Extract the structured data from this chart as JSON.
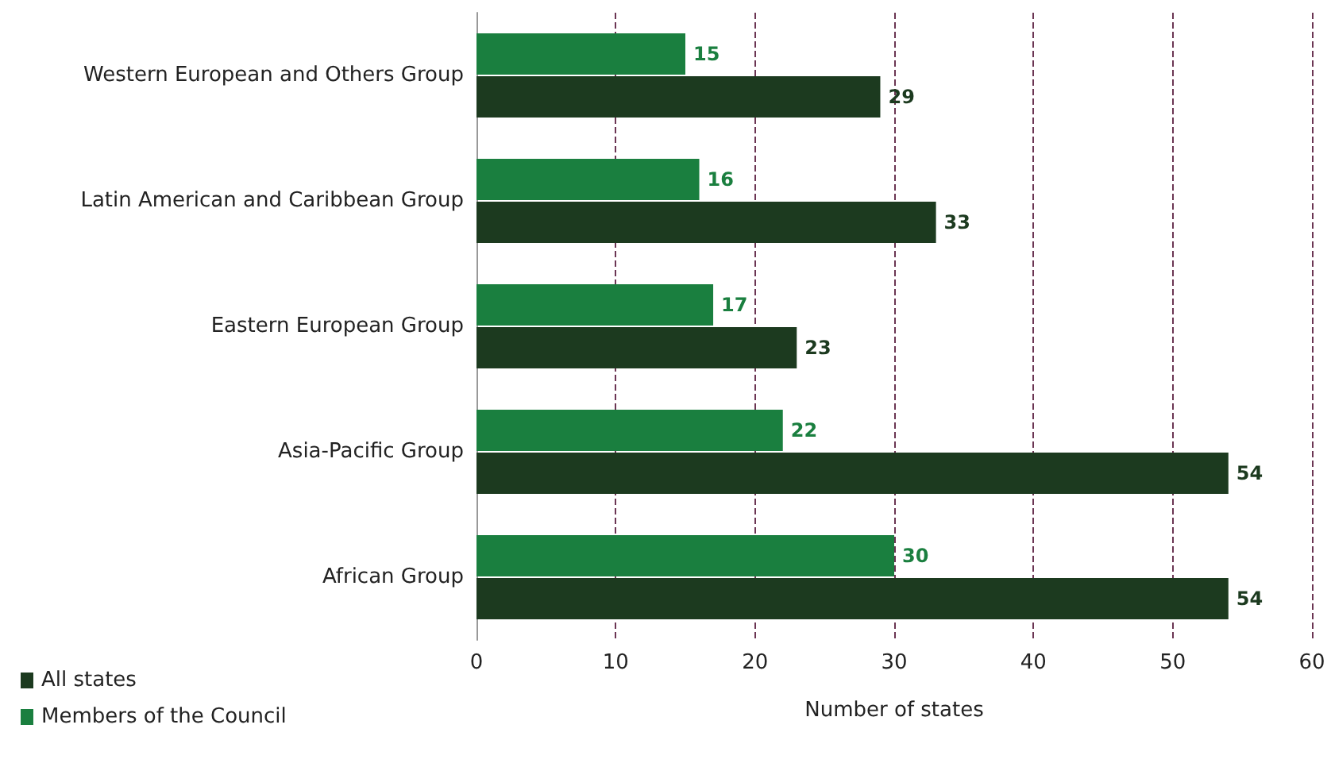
{
  "chart_data": {
    "type": "bar",
    "orientation": "horizontal",
    "xlabel": "Number of states",
    "categories": [
      "Western European and Others Group",
      "Latin American and Caribbean Group",
      "Eastern European Group",
      "Asia-Pacific Group",
      "African Group"
    ],
    "series": [
      {
        "name": "Members of the Council",
        "color": "#1a7f3f",
        "values": [
          15,
          16,
          17,
          22,
          30
        ]
      },
      {
        "name": "All states",
        "color": "#1c3a1f",
        "values": [
          29,
          33,
          23,
          54,
          54
        ]
      }
    ],
    "xlim": [
      0,
      60
    ],
    "xticks": [
      0,
      10,
      20,
      30,
      40,
      50,
      60
    ],
    "grid": "x",
    "legend": "bottom left",
    "data_labels": true
  }
}
